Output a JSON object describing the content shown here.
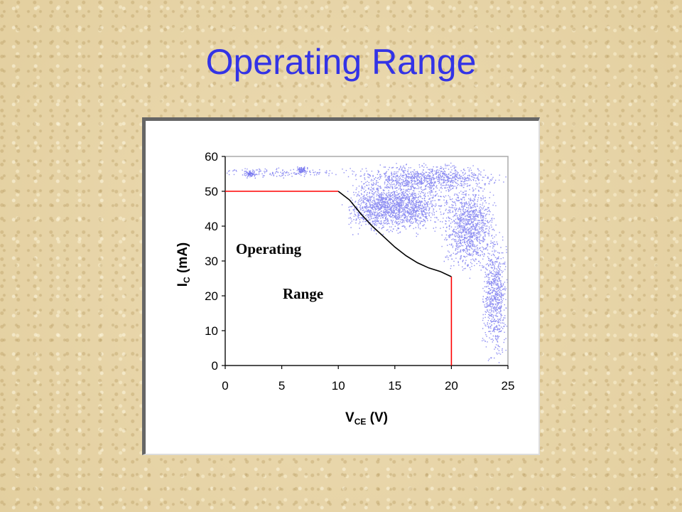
{
  "slide": {
    "title": "Operating Range"
  },
  "chart_data": {
    "type": "line",
    "title": "",
    "xlabel": {
      "main": "V",
      "sub": "CE",
      "unit": " (V)"
    },
    "ylabel": {
      "main": "I",
      "sub": "C",
      "unit": " (mA)"
    },
    "xlim": [
      0,
      25
    ],
    "ylim": [
      0,
      60
    ],
    "xticks": [
      "0",
      "5",
      "10",
      "15",
      "20",
      "25"
    ],
    "yticks": [
      "0",
      "10",
      "20",
      "30",
      "40",
      "50",
      "60"
    ],
    "grid": false,
    "region_labels": [
      "Operating",
      "Range"
    ],
    "boundary_segments": [
      {
        "color": "#ff0000",
        "points": [
          [
            0,
            50
          ],
          [
            10,
            50
          ]
        ]
      },
      {
        "color": "#000000",
        "points": [
          [
            10,
            50
          ],
          [
            11,
            47.5
          ],
          [
            12,
            43.5
          ],
          [
            13,
            40
          ],
          [
            14,
            37
          ],
          [
            15,
            34
          ],
          [
            16,
            31.5
          ],
          [
            17,
            29.5
          ],
          [
            18,
            28
          ],
          [
            19,
            27
          ],
          [
            20,
            25.5
          ]
        ]
      },
      {
        "color": "#ff0000",
        "points": [
          [
            20,
            25.5
          ],
          [
            20,
            0
          ]
        ]
      }
    ],
    "scatter_color": "#7b7bf0"
  }
}
